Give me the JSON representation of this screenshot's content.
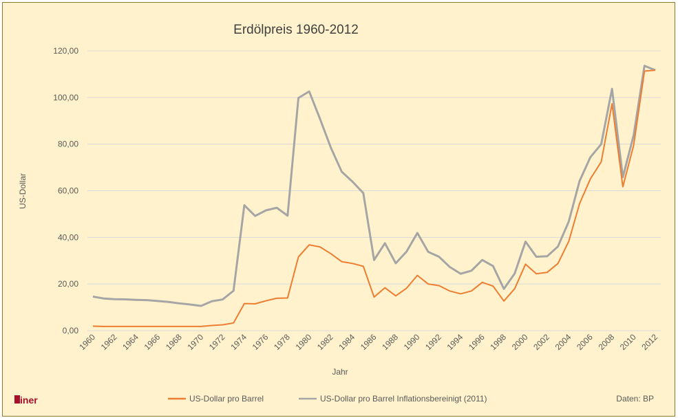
{
  "chart_data": {
    "type": "line",
    "title": "Erdölpreis 1960-2012",
    "xlabel": "Jahr",
    "ylabel": "US-Dollar",
    "ylim": [
      0,
      120
    ],
    "yticks": [
      "0,00",
      "20,00",
      "40,00",
      "60,00",
      "80,00",
      "100,00",
      "120,00"
    ],
    "ytick_values": [
      0,
      20,
      40,
      60,
      80,
      100,
      120
    ],
    "grid": true,
    "legend_position": "bottom",
    "x": [
      1960,
      1961,
      1962,
      1963,
      1964,
      1965,
      1966,
      1967,
      1968,
      1969,
      1970,
      1971,
      1972,
      1973,
      1974,
      1975,
      1976,
      1977,
      1978,
      1979,
      1980,
      1981,
      1982,
      1983,
      1984,
      1985,
      1986,
      1987,
      1988,
      1989,
      1990,
      1991,
      1992,
      1993,
      1994,
      1995,
      1996,
      1997,
      1998,
      1999,
      2000,
      2001,
      2002,
      2003,
      2004,
      2005,
      2006,
      2007,
      2008,
      2009,
      2010,
      2011,
      2012
    ],
    "xtick_labels": [
      "1960",
      "1962",
      "1964",
      "1966",
      "1968",
      "1970",
      "1972",
      "1974",
      "1976",
      "1978",
      "1980",
      "1982",
      "1984",
      "1986",
      "1988",
      "1990",
      "1992",
      "1994",
      "1996",
      "1998",
      "2000",
      "2002",
      "2004",
      "2006",
      "2008",
      "2010",
      "2012"
    ],
    "series": [
      {
        "name": "US-Dollar pro Barrel",
        "color": "#ED7D31",
        "values": [
          1.9,
          1.8,
          1.8,
          1.8,
          1.8,
          1.8,
          1.8,
          1.8,
          1.8,
          1.8,
          1.8,
          2.2,
          2.5,
          3.3,
          11.6,
          11.5,
          12.8,
          13.9,
          14.0,
          31.6,
          36.8,
          35.9,
          33.0,
          29.6,
          28.8,
          27.6,
          14.4,
          18.4,
          14.9,
          18.2,
          23.7,
          20.0,
          19.3,
          17.0,
          15.8,
          17.0,
          20.7,
          19.1,
          12.7,
          18.0,
          28.5,
          24.4,
          25.0,
          28.8,
          38.3,
          54.5,
          65.1,
          72.4,
          97.3,
          61.7,
          79.5,
          111.3,
          111.7
        ]
      },
      {
        "name": "US-Dollar pro Barrel Inflationsbereinigt (2011)",
        "color": "#A5A5A5",
        "values": [
          14.6,
          13.8,
          13.5,
          13.4,
          13.2,
          13.1,
          12.7,
          12.3,
          11.7,
          11.2,
          10.6,
          12.6,
          13.4,
          17.1,
          53.8,
          49.2,
          51.6,
          52.7,
          49.3,
          99.8,
          102.6,
          90.8,
          78.5,
          68.2,
          63.9,
          59.0,
          30.3,
          37.5,
          28.9,
          33.9,
          41.9,
          33.8,
          31.7,
          27.3,
          24.4,
          25.7,
          30.3,
          27.7,
          17.9,
          24.5,
          38.2,
          31.7,
          31.9,
          36.1,
          46.8,
          64.2,
          74.4,
          80.0,
          103.7,
          65.8,
          83.8,
          113.6,
          111.7
        ]
      }
    ]
  },
  "source": "Daten: BP",
  "logo": "finer",
  "colors": {
    "background": "#FFF2CC",
    "grid": "#D9D9D9",
    "logo": "#A50F2A"
  }
}
